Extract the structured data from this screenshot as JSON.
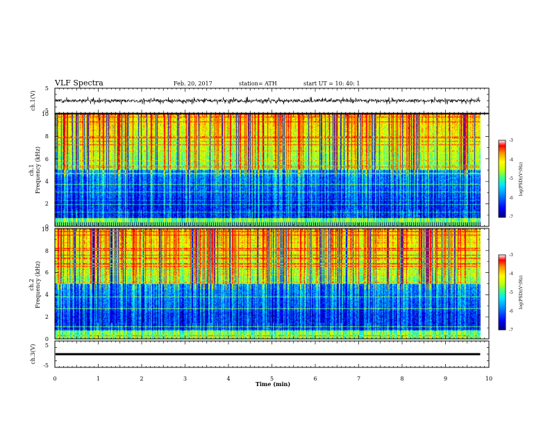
{
  "header": {
    "title": "VLF Spectra",
    "date": "Feb. 20, 2017",
    "station": "station= ATH",
    "start": "start  UT  =   10: 40: 1"
  },
  "colors": {
    "colormap": [
      "#00007f",
      "#0000ff",
      "#0080ff",
      "#00e0ff",
      "#40ff90",
      "#c0ff00",
      "#ffff00",
      "#ff9000",
      "#ff0000",
      "#ffffff"
    ],
    "trace": "#000000"
  },
  "chart_data": [
    {
      "type": "line",
      "name": "ch1-waveform",
      "ylabel": "ch.1(V)",
      "ylim": [
        -5,
        5
      ],
      "y_ticks": [
        "5",
        "-5"
      ],
      "xlim": [
        0,
        10
      ],
      "signal_range": [
        -1.6,
        1.6
      ],
      "data_end_min": 9.8
    },
    {
      "type": "heatmap",
      "name": "ch1-spectrogram",
      "ylabel": "ch.1",
      "ylabel2": "Frequency  (kHz)",
      "ylim": [
        0,
        10
      ],
      "y_ticks": [
        "0",
        "2",
        "4",
        "6",
        "8",
        "10"
      ],
      "xlim": [
        0,
        10
      ],
      "data_end_min": 9.8,
      "colorbar": {
        "label": "log(PSD)(V²/Hz)",
        "range": [
          -7,
          -3
        ],
        "ticks": [
          "-3",
          "-4",
          "-5",
          "-6",
          "-7"
        ]
      }
    },
    {
      "type": "heatmap",
      "name": "ch2-spectrogram",
      "ylabel": "ch.2",
      "ylabel2": "Frequency  (kHz)",
      "ylim": [
        0,
        10
      ],
      "y_ticks": [
        "0",
        "2",
        "4",
        "6",
        "8",
        "10"
      ],
      "xlim": [
        0,
        10
      ],
      "data_end_min": 9.8,
      "colorbar": {
        "label": "log(PSD)(V²/Hz)",
        "range": [
          -7,
          -3
        ],
        "ticks": [
          "-3",
          "-4",
          "-5",
          "-6",
          "-7"
        ]
      }
    },
    {
      "type": "line",
      "name": "ch3-waveform",
      "ylabel": "ch.3(V)",
      "ylim": [
        -5,
        5
      ],
      "y_ticks": [
        "5",
        "-5"
      ],
      "xlim": [
        0,
        10
      ],
      "signal_range": [
        -0.4,
        0.4
      ],
      "data_end_min": 9.8
    }
  ],
  "x_axis": {
    "label": "Time  (min)",
    "ticks": [
      "0",
      "1",
      "2",
      "3",
      "4",
      "5",
      "6",
      "7",
      "8",
      "9",
      "10"
    ],
    "range": [
      0,
      10
    ]
  }
}
